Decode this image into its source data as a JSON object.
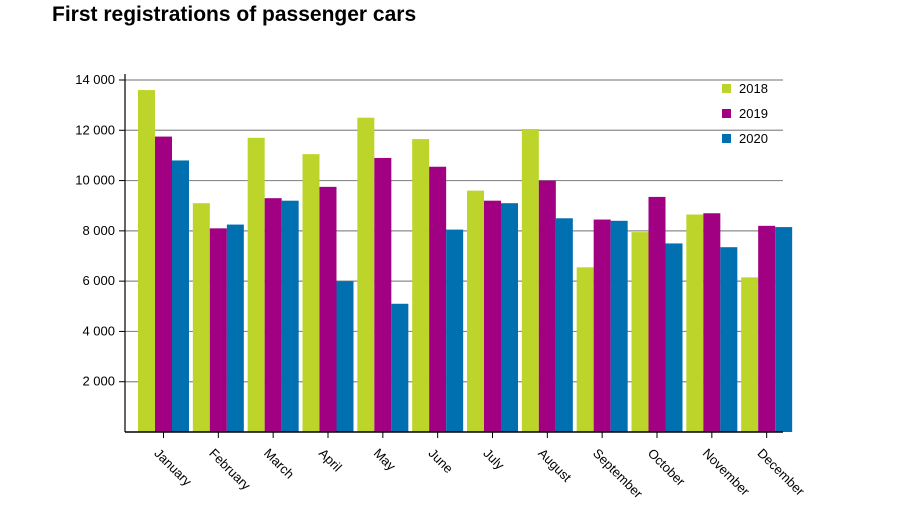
{
  "title": "First registrations of passenger cars",
  "chart_data": {
    "type": "bar",
    "title": "First registrations of passenger cars",
    "xlabel": "",
    "ylabel": "",
    "ylim": [
      0,
      14000
    ],
    "yticks": [
      2000,
      4000,
      6000,
      8000,
      10000,
      12000,
      14000
    ],
    "ytick_labels": [
      "2 000",
      "4 000",
      "6 000",
      "8 000",
      "10 000",
      "12 000",
      "14 000"
    ],
    "grid": true,
    "legend_position": "top-right",
    "categories": [
      "January",
      "February",
      "March",
      "April",
      "May",
      "June",
      "July",
      "August",
      "September",
      "October",
      "November",
      "December"
    ],
    "series": [
      {
        "name": "2018",
        "color": "#bdd52b",
        "values": [
          13600,
          9100,
          11700,
          11050,
          12500,
          11650,
          9600,
          12050,
          6550,
          7950,
          8650,
          6150
        ]
      },
      {
        "name": "2019",
        "color": "#a10082",
        "values": [
          11750,
          8100,
          9300,
          9750,
          10900,
          10550,
          9200,
          10000,
          8450,
          9350,
          8700,
          8200
        ]
      },
      {
        "name": "2020",
        "color": "#0070b0",
        "values": [
          10800,
          8250,
          9200,
          6000,
          5100,
          8050,
          9100,
          8500,
          8400,
          7500,
          7350,
          8150
        ]
      }
    ]
  }
}
